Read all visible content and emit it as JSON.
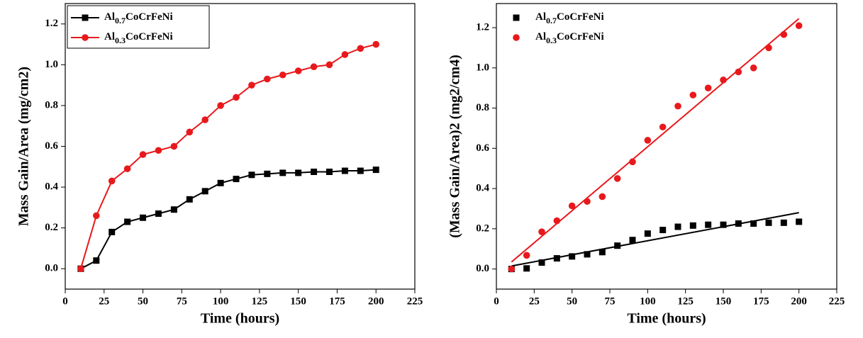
{
  "chart_data": [
    {
      "type": "line",
      "xlabel": "Time (hours)",
      "ylabel": "Mass Gain/Area (mg/cm2)",
      "xlim": [
        0,
        225
      ],
      "xticks": [
        0,
        25,
        50,
        75,
        100,
        125,
        150,
        175,
        200,
        225
      ],
      "ylim": [
        -0.1,
        1.3
      ],
      "yticks": [
        {
          "value": 0,
          "label": "0.0"
        },
        0.2,
        0.4,
        0.6,
        0.8,
        {
          "value": 1,
          "label": "1.0"
        },
        1.2
      ],
      "legend": "upper left",
      "x": [
        10,
        20,
        30,
        40,
        50,
        60,
        70,
        80,
        90,
        100,
        110,
        120,
        130,
        140,
        150,
        160,
        170,
        180,
        190,
        200
      ],
      "series": [
        {
          "name": "Al0.7CoCrFeNi",
          "color": "#000000",
          "marker": "square",
          "values": [
            0,
            0.04,
            0.18,
            0.23,
            0.25,
            0.27,
            0.29,
            0.34,
            0.38,
            0.42,
            0.44,
            0.46,
            0.465,
            0.47,
            0.47,
            0.475,
            0.475,
            0.48,
            0.48,
            0.485
          ]
        },
        {
          "name": "Al0.3CoCrFeNi",
          "color": "#e8191c",
          "marker": "circle",
          "values": [
            0,
            0.26,
            0.43,
            0.49,
            0.56,
            0.58,
            0.6,
            0.67,
            0.73,
            0.8,
            0.84,
            0.9,
            0.93,
            0.95,
            0.97,
            0.99,
            1.0,
            1.05,
            1.08,
            1.1
          ]
        }
      ]
    },
    {
      "type": "scatter",
      "xlabel": "Time (hours)",
      "ylabel": "(Mass Gain/Area)2 (mg2/cm4)",
      "xlim": [
        0,
        225
      ],
      "xticks": [
        0,
        25,
        50,
        75,
        100,
        125,
        150,
        175,
        200,
        225
      ],
      "ylim": [
        -0.1,
        1.32
      ],
      "yticks": [
        {
          "value": 0,
          "label": "0.0"
        },
        0.2,
        0.4,
        0.6,
        0.8,
        {
          "value": 1,
          "label": "1.0"
        },
        1.2
      ],
      "legend": "upper left",
      "x": [
        10,
        20,
        30,
        40,
        50,
        60,
        70,
        80,
        90,
        100,
        110,
        120,
        130,
        140,
        150,
        160,
        170,
        180,
        190,
        200
      ],
      "series": [
        {
          "name": "Al0.7CoCrFeNi",
          "color": "#000000",
          "marker": "square",
          "values": [
            0,
            0.003,
            0.032,
            0.053,
            0.0625,
            0.073,
            0.084,
            0.116,
            0.144,
            0.176,
            0.194,
            0.21,
            0.216,
            0.22,
            0.22,
            0.226,
            0.226,
            0.23,
            0.23,
            0.235
          ],
          "fit": {
            "x": [
              10,
              200
            ],
            "values": [
              0.015,
              0.28
            ]
          }
        },
        {
          "name": "Al0.3CoCrFeNi",
          "color": "#e8191c",
          "marker": "circle",
          "values": [
            0,
            0.068,
            0.185,
            0.24,
            0.314,
            0.336,
            0.36,
            0.45,
            0.533,
            0.64,
            0.706,
            0.81,
            0.865,
            0.9,
            0.94,
            0.98,
            1.0,
            1.1,
            1.166,
            1.21
          ],
          "fit": {
            "x": [
              10,
              200
            ],
            "values": [
              0.035,
              1.245
            ]
          }
        }
      ]
    }
  ]
}
